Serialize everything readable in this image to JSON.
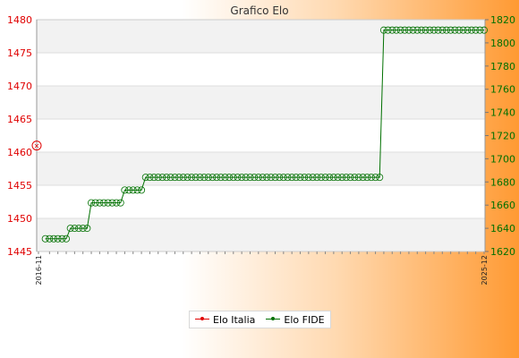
{
  "chart_data": {
    "type": "line",
    "title": "Grafico Elo",
    "y_left": {
      "range": [
        1445,
        1480
      ],
      "ticks": [
        1445,
        1450,
        1455,
        1460,
        1465,
        1470,
        1475,
        1480
      ],
      "color": "#e00000"
    },
    "y_right": {
      "range": [
        1620,
        1820
      ],
      "ticks": [
        1620,
        1640,
        1660,
        1680,
        1700,
        1720,
        1740,
        1760,
        1780,
        1800,
        1820
      ],
      "color": "#007000"
    },
    "x_start_label": "2016-11",
    "x_end_label": "2025-12",
    "grid": true,
    "legend_position": "bottom",
    "series": [
      {
        "name": "Elo Italia",
        "axis": "left",
        "color": "#e00000",
        "values": [
          1461
        ]
      },
      {
        "name": "Elo FIDE",
        "axis": "right",
        "color": "#007000",
        "values": [
          1631,
          1631,
          1631,
          1631,
          1631,
          1631,
          1640,
          1640,
          1640,
          1640,
          1640,
          1662,
          1662,
          1662,
          1662,
          1662,
          1662,
          1662,
          1662,
          1673,
          1673,
          1673,
          1673,
          1673,
          1684,
          1684,
          1684,
          1684,
          1684,
          1684,
          1684,
          1684,
          1684,
          1684,
          1684,
          1684,
          1684,
          1684,
          1684,
          1684,
          1684,
          1684,
          1684,
          1684,
          1684,
          1684,
          1684,
          1684,
          1684,
          1684,
          1684,
          1684,
          1684,
          1684,
          1684,
          1684,
          1684,
          1684,
          1684,
          1684,
          1684,
          1684,
          1684,
          1684,
          1684,
          1684,
          1684,
          1684,
          1684,
          1684,
          1684,
          1684,
          1684,
          1684,
          1684,
          1684,
          1684,
          1684,
          1684,
          1684,
          1684,
          1811,
          1811,
          1811,
          1811,
          1811,
          1811,
          1811,
          1811,
          1811,
          1811,
          1811,
          1811,
          1811,
          1811,
          1811,
          1811,
          1811,
          1811,
          1811,
          1811,
          1811,
          1811,
          1811,
          1811,
          1811
        ]
      }
    ]
  }
}
